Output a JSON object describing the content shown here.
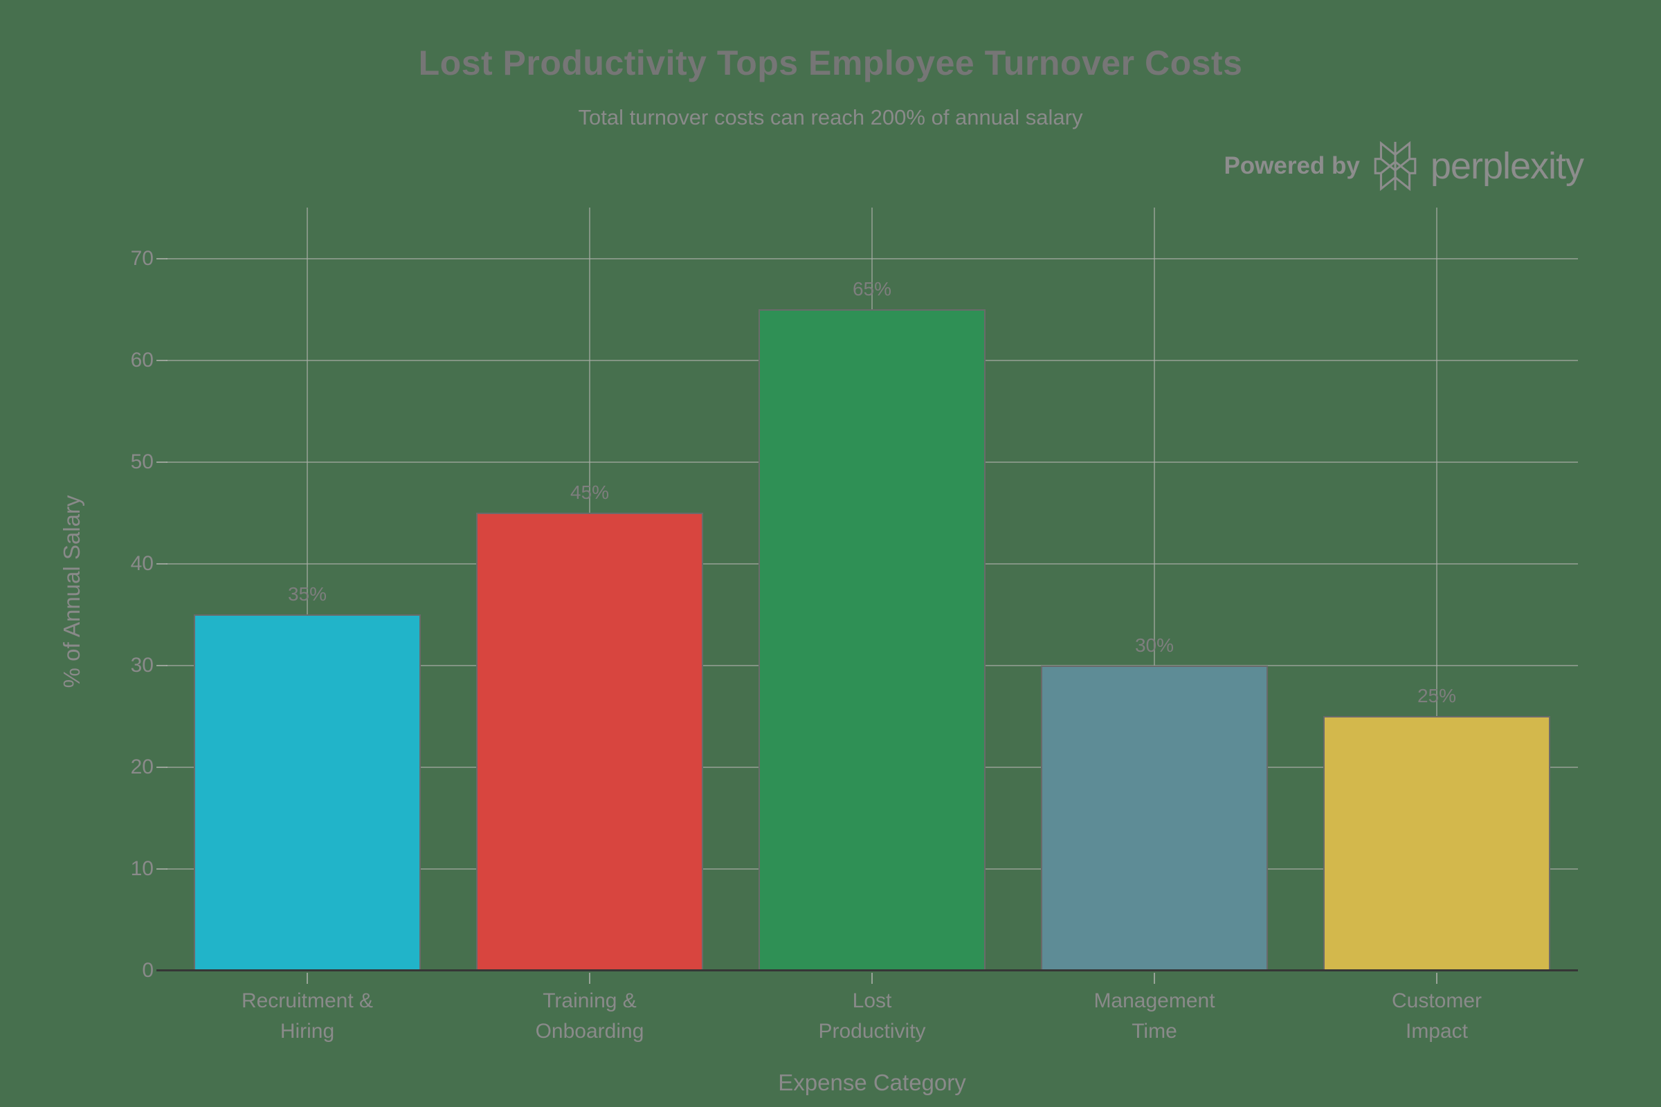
{
  "chart_data": {
    "type": "bar",
    "title": "Lost Productivity Tops Employee Turnover Costs",
    "subtitle": "Total turnover costs can reach 200% of annual salary",
    "categories": [
      "Recruitment &\nHiring",
      "Training &\nOnboarding",
      "Lost\nProductivity",
      "Management\nTime",
      "Customer\nImpact"
    ],
    "values": [
      35,
      45,
      65,
      30,
      25
    ],
    "value_labels": [
      "35%",
      "45%",
      "65%",
      "30%",
      "25%"
    ],
    "bar_colors": [
      "#21B4C9",
      "#D8453F",
      "#2F9055",
      "#5E8C96",
      "#D3B84C"
    ],
    "xlabel": "Expense Category",
    "ylabel": "% of Annual Salary",
    "ylim": [
      0,
      75
    ],
    "yticks": [
      0,
      10,
      20,
      30,
      40,
      50,
      60,
      70
    ],
    "grid": "horizontal lines at each y tick, vertical line at each category center",
    "legend": "none"
  },
  "attribution": {
    "powered_by": "Powered by",
    "brand": "perplexity",
    "logo_icon": "perplexity-asterisk-icon"
  },
  "style": {
    "background": "#47704E",
    "grid_color": "rgba(168,172,166,0.62)",
    "axis_color": "#363636",
    "bar_border_color": "#6A6A6A",
    "title_color": "#767676",
    "text_color": "#8A8A8A",
    "value_label_color": "#7E7E7E"
  }
}
